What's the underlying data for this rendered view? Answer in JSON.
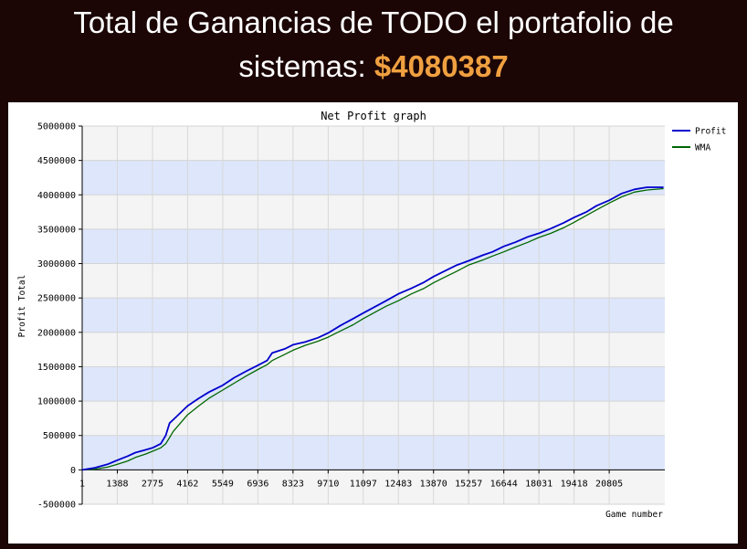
{
  "banner": {
    "line1": "Total de Ganancias de TODO el portafolio de",
    "line2_prefix": "sistemas:",
    "amount": "$4080387"
  },
  "colors": {
    "background": "#1b0505",
    "amount": "#f0a040",
    "profit_line": "#0000cc",
    "wma_line": "#006600",
    "band_blue": "#dde6fb",
    "band_gray": "#f4f4f4"
  },
  "chart_data": {
    "type": "line",
    "title": "Net Profit graph",
    "xlabel": "Game number",
    "ylabel": "Profit Total",
    "xlim": [
      1,
      23000
    ],
    "ylim": [
      -500000,
      5000000
    ],
    "grid": true,
    "legend_position": "top-right",
    "x_ticks": [
      "1",
      "1388",
      "2775",
      "4162",
      "5549",
      "6936",
      "8323",
      "9710",
      "11097",
      "12483",
      "13870",
      "15257",
      "16644",
      "18031",
      "19418",
      "20805"
    ],
    "y_ticks": [
      "5000000",
      "4500000",
      "4000000",
      "3500000",
      "3000000",
      "2500000",
      "2000000",
      "1500000",
      "1000000",
      "500000",
      "0",
      "-500000"
    ],
    "series": [
      {
        "name": "Profit",
        "x": [
          1,
          500,
          1000,
          1388,
          1800,
          2100,
          2500,
          2775,
          3100,
          3300,
          3450,
          3600,
          4162,
          4600,
          5000,
          5549,
          6000,
          6500,
          6936,
          7300,
          7500,
          8000,
          8323,
          8800,
          9300,
          9710,
          10200,
          10700,
          11097,
          11600,
          12000,
          12483,
          13000,
          13500,
          13870,
          14300,
          14800,
          15257,
          15800,
          16200,
          16644,
          17100,
          17600,
          18031,
          18500,
          19000,
          19418,
          19900,
          20300,
          20805,
          21300,
          21800,
          22300,
          22950
        ],
        "values": [
          0,
          30000,
          80000,
          140000,
          200000,
          250000,
          290000,
          320000,
          380000,
          500000,
          680000,
          730000,
          930000,
          1040000,
          1130000,
          1230000,
          1340000,
          1440000,
          1520000,
          1590000,
          1700000,
          1760000,
          1820000,
          1860000,
          1920000,
          1990000,
          2100000,
          2200000,
          2280000,
          2380000,
          2460000,
          2560000,
          2640000,
          2730000,
          2810000,
          2890000,
          2980000,
          3040000,
          3120000,
          3170000,
          3250000,
          3310000,
          3390000,
          3440000,
          3510000,
          3590000,
          3670000,
          3750000,
          3840000,
          3920000,
          4020000,
          4080000,
          4110000,
          4110000
        ]
      },
      {
        "name": "WMA",
        "x": [
          1,
          500,
          1000,
          1388,
          1800,
          2100,
          2500,
          2775,
          3100,
          3300,
          3450,
          3600,
          4162,
          4600,
          5000,
          5549,
          6000,
          6500,
          6936,
          7300,
          7500,
          8000,
          8323,
          8800,
          9300,
          9710,
          10200,
          10700,
          11097,
          11600,
          12000,
          12483,
          13000,
          13500,
          13870,
          14300,
          14800,
          15257,
          15800,
          16200,
          16644,
          17100,
          17600,
          18031,
          18500,
          19000,
          19418,
          19900,
          20300,
          20805,
          21300,
          21800,
          22300,
          22950
        ],
        "values": [
          0,
          10000,
          40000,
          80000,
          130000,
          180000,
          230000,
          270000,
          320000,
          380000,
          470000,
          560000,
          800000,
          930000,
          1040000,
          1160000,
          1260000,
          1370000,
          1460000,
          1530000,
          1590000,
          1680000,
          1740000,
          1810000,
          1870000,
          1930000,
          2020000,
          2110000,
          2200000,
          2300000,
          2380000,
          2460000,
          2560000,
          2640000,
          2720000,
          2800000,
          2890000,
          2980000,
          3050000,
          3110000,
          3170000,
          3240000,
          3310000,
          3380000,
          3440000,
          3520000,
          3600000,
          3700000,
          3780000,
          3880000,
          3970000,
          4040000,
          4070000,
          4090000
        ]
      }
    ]
  }
}
